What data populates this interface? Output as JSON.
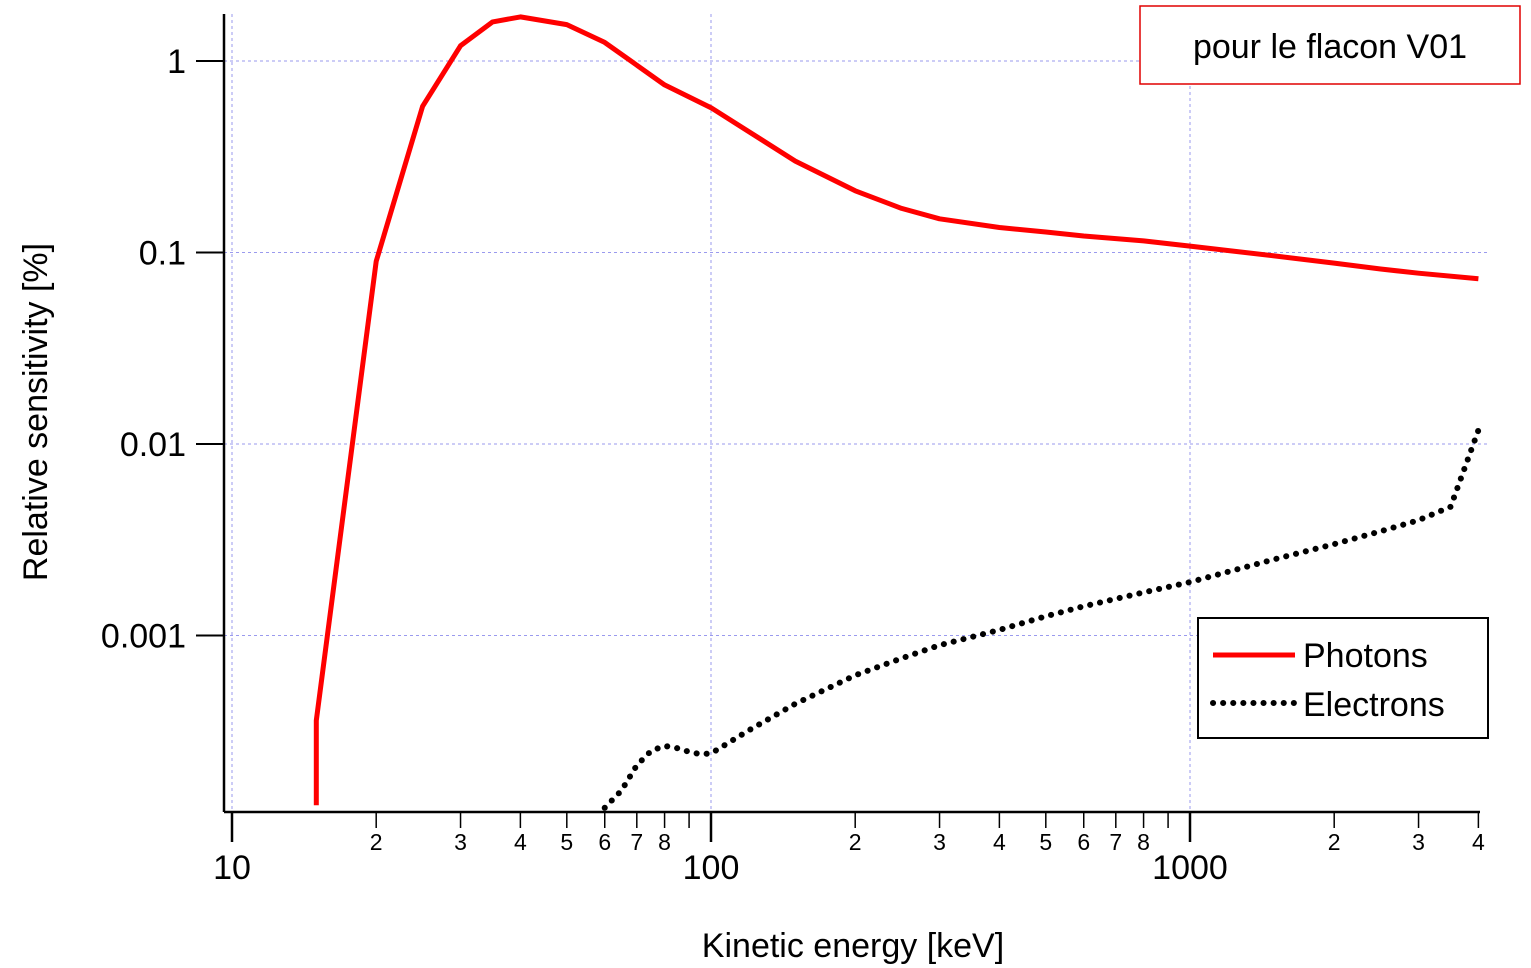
{
  "chart_data": {
    "type": "line",
    "xlabel": "Kinetic energy [keV]",
    "ylabel": "Relative sensitivity [%]",
    "x_scale": "log",
    "y_scale": "log",
    "xlim": [
      10,
      4000
    ],
    "ylim": [
      0.0001,
      2.2
    ],
    "grid": true,
    "legend_position": "bottom-right",
    "annotation": "pour le flacon V01",
    "annotation_color": "#e00000",
    "x_major_ticks": [
      {
        "value": 10,
        "label": "10"
      },
      {
        "value": 100,
        "label": "100"
      },
      {
        "value": 1000,
        "label": "1000"
      }
    ],
    "x_minor_ticks": [
      {
        "value": 20,
        "label": "2"
      },
      {
        "value": 30,
        "label": "3"
      },
      {
        "value": 40,
        "label": "4"
      },
      {
        "value": 50,
        "label": "5"
      },
      {
        "value": 60,
        "label": "6"
      },
      {
        "value": 70,
        "label": "7"
      },
      {
        "value": 80,
        "label": "8"
      },
      {
        "value": 90,
        "label": ""
      },
      {
        "value": 200,
        "label": "2"
      },
      {
        "value": 300,
        "label": "3"
      },
      {
        "value": 400,
        "label": "4"
      },
      {
        "value": 500,
        "label": "5"
      },
      {
        "value": 600,
        "label": "6"
      },
      {
        "value": 700,
        "label": "7"
      },
      {
        "value": 800,
        "label": "8"
      },
      {
        "value": 900,
        "label": ""
      },
      {
        "value": 2000,
        "label": "2"
      },
      {
        "value": 3000,
        "label": "3"
      },
      {
        "value": 4000,
        "label": "4"
      }
    ],
    "y_ticks": [
      {
        "value": 1,
        "label": "1"
      },
      {
        "value": 0.1,
        "label": "0.1"
      },
      {
        "value": 0.01,
        "label": "0.01"
      },
      {
        "value": 0.001,
        "label": "0.001"
      }
    ],
    "series": [
      {
        "name": "Photons",
        "color": "#ff0000",
        "style": "solid",
        "x": [
          15,
          15,
          20,
          25,
          30,
          35,
          40,
          50,
          60,
          80,
          100,
          150,
          200,
          250,
          300,
          400,
          500,
          600,
          800,
          1000,
          1500,
          2000,
          2500,
          3000,
          4000
        ],
        "y": [
          0.00013,
          0.00036,
          0.09,
          0.58,
          1.2,
          1.6,
          1.7,
          1.55,
          1.25,
          0.75,
          0.57,
          0.3,
          0.21,
          0.17,
          0.15,
          0.135,
          0.128,
          0.122,
          0.115,
          0.108,
          0.096,
          0.088,
          0.082,
          0.078,
          0.073
        ]
      },
      {
        "name": "Electrons",
        "color": "#000000",
        "style": "dotted",
        "x": [
          60,
          65,
          70,
          75,
          80,
          85,
          90,
          95,
          100,
          120,
          150,
          200,
          250,
          300,
          400,
          500,
          600,
          800,
          1000,
          1500,
          2000,
          2500,
          3000,
          3500,
          4000
        ],
        "y": [
          0.000126,
          0.000155,
          0.00021,
          0.00025,
          0.000265,
          0.000258,
          0.000247,
          0.00024,
          0.000242,
          0.00032,
          0.00044,
          0.00062,
          0.00076,
          0.00089,
          0.00107,
          0.00126,
          0.00142,
          0.00168,
          0.0019,
          0.0025,
          0.003,
          0.0035,
          0.004,
          0.0047,
          0.0118
        ]
      }
    ]
  }
}
